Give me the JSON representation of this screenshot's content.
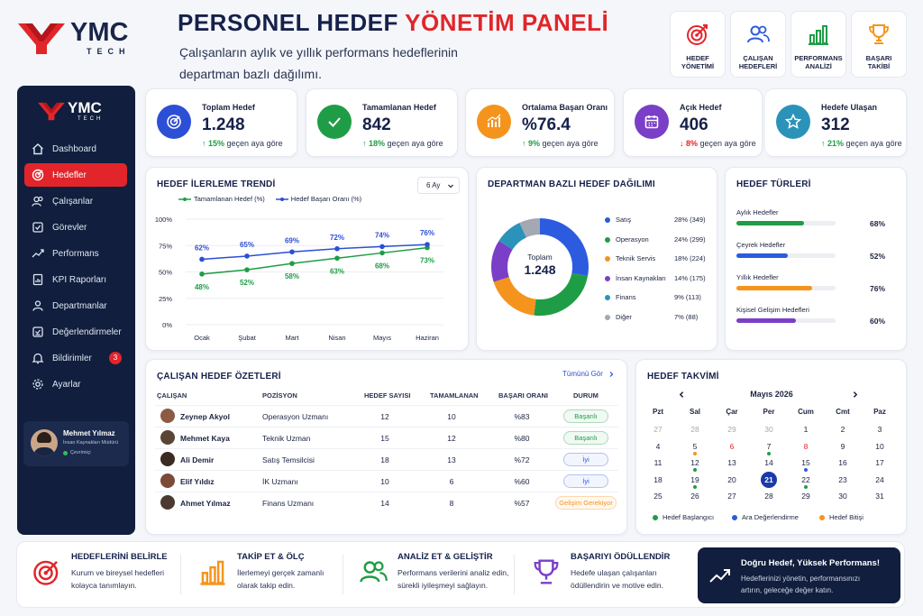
{
  "brand": {
    "logo_name": "YMC",
    "logo_sub": "TECH"
  },
  "header": {
    "title_main": "PERSONEL HEDEF ",
    "title_accent": "YÖNETİM PANELİ",
    "subtitle_line1": "Çalışanların aylık ve yıllık performans hedeflerinin",
    "subtitle_line2": "departman bazlı dağılımı."
  },
  "quick_actions": [
    {
      "l1": "HEDEF",
      "l2": "YÖNETİMİ",
      "icon": "target-icon"
    },
    {
      "l1": "ÇALIŞAN",
      "l2": "HEDEFLERİ",
      "icon": "users-icon"
    },
    {
      "l1": "PERFORMANS",
      "l2": "ANALİZİ",
      "icon": "bar-chart-icon"
    },
    {
      "l1": "BAŞARI",
      "l2": "TAKİBİ",
      "icon": "trophy-icon"
    }
  ],
  "sidebar": {
    "items": [
      {
        "label": "Dashboard",
        "icon": "home-icon"
      },
      {
        "label": "Hedefler",
        "icon": "target-icon",
        "active": true
      },
      {
        "label": "Çalışanlar",
        "icon": "users-icon"
      },
      {
        "label": "Görevler",
        "icon": "tasks-icon"
      },
      {
        "label": "Performans",
        "icon": "trend-icon"
      },
      {
        "label": "KPI Raporları",
        "icon": "report-icon"
      },
      {
        "label": "Departmanlar",
        "icon": "department-icon"
      },
      {
        "label": "Değerlendirmeler",
        "icon": "evaluation-icon"
      },
      {
        "label": "Bildirimler",
        "icon": "bell-icon",
        "badge": "3"
      },
      {
        "label": "Ayarlar",
        "icon": "gear-icon"
      }
    ],
    "user": {
      "name": "Mehmet Yılmaz",
      "role": "İnsan Kaynakları Müdürü",
      "status": "Çevrimiçi"
    }
  },
  "stats": [
    {
      "label": "Toplam Hedef",
      "value": "1.248",
      "change": "↑ 15%",
      "change_text": "geçen aya göre",
      "dir": "up",
      "color": "#2c4fd6"
    },
    {
      "label": "Tamamlanan Hedef",
      "value": "842",
      "change": "↑ 18%",
      "change_text": "geçen aya göre",
      "dir": "up",
      "color": "#1f9d46"
    },
    {
      "label": "Ortalama Başarı Oranı",
      "value": "%76.4",
      "change": "↑ 9%",
      "change_text": "geçen aya göre",
      "dir": "up",
      "color": "#f5941d"
    },
    {
      "label": "Açık Hedef",
      "value": "406",
      "change": "↓ 8%",
      "change_text": "geçen aya göre",
      "dir": "down",
      "color": "#7a3fc6"
    },
    {
      "label": "Hedefe Ulaşan",
      "value": "312",
      "change": "↑ 21%",
      "change_text": "geçen aya göre",
      "dir": "up",
      "color": "#2b93b9"
    }
  ],
  "trend": {
    "title": "HEDEF İLERLEME TRENDİ",
    "period": "6 Ay",
    "legend": [
      "Tamamlanan Hedef (%)",
      "Hedef Başarı Oranı (%)"
    ]
  },
  "chart_data": [
    {
      "type": "line",
      "title": "HEDEF İLERLEME TRENDİ",
      "x": [
        "Ocak",
        "Şubat",
        "Mart",
        "Nisan",
        "Mayıs",
        "Haziran"
      ],
      "y_ticks": [
        "100%",
        "75%",
        "50%",
        "25%",
        "0%"
      ],
      "ylim": [
        0,
        100
      ],
      "legend_position": "top-left",
      "series": [
        {
          "name": "Tamamlanan Hedef (%)",
          "color": "#1f9d46",
          "values": [
            48,
            52,
            58,
            63,
            68,
            73
          ],
          "labels": [
            "48%",
            "52%",
            "58%",
            "63%",
            "68%",
            "73%"
          ]
        },
        {
          "name": "Hedef Başarı Oranı (%)",
          "color": "#2c4fd6",
          "values": [
            62,
            65,
            69,
            72,
            74,
            76
          ],
          "labels": [
            "62%",
            "65%",
            "69%",
            "72%",
            "74%",
            "76%"
          ]
        }
      ]
    },
    {
      "type": "pie",
      "title": "DEPARTMAN BAZLI HEDEF DAĞILIMI",
      "center_label": "Toplam",
      "center_value": "1.248",
      "legend_position": "right",
      "slices": [
        {
          "name": "Satış",
          "value": 349,
          "pct": 28,
          "text": "28% (349)",
          "color": "#2c5be0"
        },
        {
          "name": "Operasyon",
          "value": 299,
          "pct": 24,
          "text": "24% (299)",
          "color": "#1f9d46"
        },
        {
          "name": "Teknik Servis",
          "value": 224,
          "pct": 18,
          "text": "18% (224)",
          "color": "#f5941d"
        },
        {
          "name": "İnsan Kaynakları",
          "value": 175,
          "pct": 14,
          "text": "14% (175)",
          "color": "#7a3fc6"
        },
        {
          "name": "Finans",
          "value": 113,
          "pct": 9,
          "text": "9% (113)",
          "color": "#2b93b9"
        },
        {
          "name": "Diğer",
          "value": 88,
          "pct": 7,
          "text": "7% (88)",
          "color": "#a3a8b3"
        }
      ]
    },
    {
      "type": "bar",
      "title": "HEDEF TÜRLERİ",
      "categories": [
        "Aylık Hedefler",
        "Çeyrek Hedefler",
        "Yıllık Hedefler",
        "Kişisel Gelişim Hedefleri"
      ],
      "values": [
        68,
        52,
        76,
        60
      ],
      "labels": [
        "68%",
        "52%",
        "76%",
        "60%"
      ],
      "colors": [
        "#1f9d46",
        "#2c5be0",
        "#f5941d",
        "#7a3fc6"
      ],
      "xlim": [
        0,
        100
      ]
    }
  ],
  "employees": {
    "title": "ÇALIŞAN HEDEF ÖZETLERİ",
    "view_all": "Tümünü Gör",
    "headers": [
      "ÇALIŞAN",
      "POZİSYON",
      "HEDEF SAYISI",
      "TAMAMLANAN",
      "BAŞARI ORANI",
      "DURUM"
    ],
    "rows": [
      {
        "name": "Zeynep Akyol",
        "position": "Operasyon Uzmanı",
        "goals": "12",
        "done": "10",
        "rate": "%83",
        "status": "Başarılı",
        "status_color": "#1f9d46"
      },
      {
        "name": "Mehmet Kaya",
        "position": "Teknik Uzman",
        "goals": "15",
        "done": "12",
        "rate": "%80",
        "status": "Başarılı",
        "status_color": "#1f9d46"
      },
      {
        "name": "Ali Demir",
        "position": "Satış Temsilcisi",
        "goals": "18",
        "done": "13",
        "rate": "%72",
        "status": "İyi",
        "status_color": "#2c5be0"
      },
      {
        "name": "Elif Yıldız",
        "position": "İK Uzmanı",
        "goals": "10",
        "done": "6",
        "rate": "%60",
        "status": "İyi",
        "status_color": "#2c5be0"
      },
      {
        "name": "Ahmet Yılmaz",
        "position": "Finans Uzmanı",
        "goals": "14",
        "done": "8",
        "rate": "%57",
        "status": "Gelişim Gerekiyor",
        "status_color": "#f5941d"
      }
    ]
  },
  "calendar": {
    "title": "HEDEF TAKVİMİ",
    "month": "Mayıs 2026",
    "weekdays": [
      "Pzt",
      "Sal",
      "Çar",
      "Per",
      "Cum",
      "Cmt",
      "Paz"
    ],
    "weeks": [
      [
        "27",
        "28",
        "29",
        "30",
        "1",
        "2",
        "3"
      ],
      [
        "4",
        "5",
        "6",
        "7",
        "8",
        "9",
        "10"
      ],
      [
        "11",
        "12",
        "13",
        "14",
        "15",
        "16",
        "17"
      ],
      [
        "18",
        "19",
        "20",
        "21",
        "22",
        "23",
        "24"
      ],
      [
        "25",
        "26",
        "27",
        "28",
        "29",
        "30",
        "31"
      ]
    ],
    "legend": [
      {
        "label": "Hedef Başlangıcı",
        "color": "#1f9d46"
      },
      {
        "label": "Ara Değerlendirme",
        "color": "#2c5be0"
      },
      {
        "label": "Hedef Bitişi",
        "color": "#f5941d"
      }
    ],
    "selected_day": "21"
  },
  "footer": [
    {
      "title": "HEDEFLERİNİ BELİRLE",
      "desc1": "Kurum ve bireysel hedefleri",
      "desc2": "kolayca tanımlayın.",
      "icon": "target-icon"
    },
    {
      "title": "TAKİP ET & ÖLÇ",
      "desc1": "İlerlemeyi gerçek zamanlı",
      "desc2": "olarak takip edin.",
      "icon": "bar-chart-icon"
    },
    {
      "title": "ANALİZ ET & GELİŞTİR",
      "desc1": "Performans verilerini analiz edin,",
      "desc2": "sürekli iyileşmeyi sağlayın.",
      "icon": "users-icon"
    },
    {
      "title": "BAŞARIYI ÖDÜLLENDİR",
      "desc1": "Hedefe ulaşan çalışanları",
      "desc2": "ödüllendirin ve motive edin.",
      "icon": "trophy-icon"
    }
  ],
  "promo": {
    "title": "Doğru Hedef, Yüksek Performans!",
    "line1": "Hedeflerinizi yönetin, performansınızı",
    "line2": "artırın, geleceğe değer katın."
  }
}
